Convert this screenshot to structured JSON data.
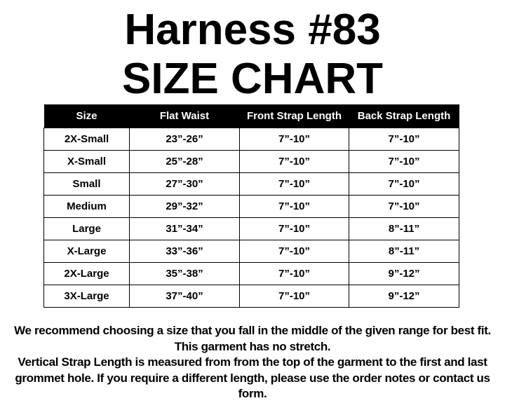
{
  "title": {
    "line1": "Harness #83",
    "line2": "SIZE CHART"
  },
  "table": {
    "headers": [
      "Size",
      "Flat Waist",
      "Front Strap Length",
      "Back Strap Length"
    ],
    "rows": [
      [
        "2X-Small",
        "23”-26”",
        "7”-10”",
        "7”-10”"
      ],
      [
        "X-Small",
        "25”-28”",
        "7”-10”",
        "7”-10”"
      ],
      [
        "Small",
        "27”-30”",
        "7”-10”",
        "7”-10”"
      ],
      [
        "Medium",
        "29”-32”",
        "7”-10”",
        "7”-10”"
      ],
      [
        "Large",
        "31”-34”",
        "7”-10”",
        "8”-11”"
      ],
      [
        "X-Large",
        "33”-36”",
        "7”-10”",
        "8”-11”"
      ],
      [
        "2X-Large",
        "35”-38”",
        "7”-10”",
        "9”-12”"
      ],
      [
        "3X-Large",
        "37”-40”",
        "7”-10”",
        "9”-12”"
      ]
    ]
  },
  "notes": {
    "fit": "We recommend choosing a size that you fall in the middle of the given range for best fit. This garment has no stretch.",
    "strap": "Vertical Strap Length is measured from from the top of the garment to the first and last grommet hole. If you require a different length, please use the order notes or contact us form."
  }
}
